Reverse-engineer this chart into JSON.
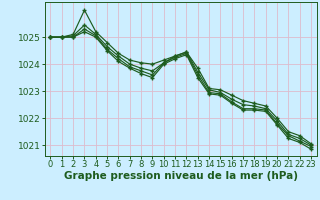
{
  "background_color": "#cceeff",
  "plot_bg_color": "#cceeff",
  "grid_color": "#aaddcc",
  "line_color": "#1e5c1e",
  "marker_color": "#1e5c1e",
  "xlabel": "Graphe pression niveau de la mer (hPa)",
  "xlabel_fontsize": 7.5,
  "ylabel_fontsize": 6.5,
  "tick_fontsize": 6,
  "ylim": [
    1020.6,
    1026.3
  ],
  "xlim": [
    -0.5,
    23.5
  ],
  "yticks": [
    1021,
    1022,
    1023,
    1024,
    1025
  ],
  "xticks": [
    0,
    1,
    2,
    3,
    4,
    5,
    6,
    7,
    8,
    9,
    10,
    11,
    12,
    13,
    14,
    15,
    16,
    17,
    18,
    19,
    20,
    21,
    22,
    23
  ],
  "series": [
    [
      1025.0,
      1025.0,
      1025.1,
      1026.0,
      1025.2,
      1024.8,
      1024.4,
      1024.15,
      1024.05,
      1024.0,
      1024.15,
      1024.3,
      1024.45,
      1023.85,
      1023.1,
      1023.05,
      1022.85,
      1022.65,
      1022.55,
      1022.45,
      1022.0,
      1021.5,
      1021.35,
      1021.05
    ],
    [
      1025.0,
      1025.0,
      1025.05,
      1025.45,
      1025.1,
      1024.65,
      1024.3,
      1024.0,
      1023.85,
      1023.75,
      1024.05,
      1024.3,
      1024.45,
      1023.7,
      1023.05,
      1022.95,
      1022.7,
      1022.5,
      1022.45,
      1022.35,
      1021.9,
      1021.4,
      1021.25,
      1021.0
    ],
    [
      1025.0,
      1025.0,
      1025.0,
      1025.3,
      1025.05,
      1024.55,
      1024.2,
      1023.9,
      1023.75,
      1023.6,
      1024.05,
      1024.25,
      1024.4,
      1023.6,
      1022.95,
      1022.9,
      1022.6,
      1022.35,
      1022.35,
      1022.3,
      1021.8,
      1021.35,
      1021.15,
      1020.95
    ],
    [
      1025.0,
      1025.0,
      1025.0,
      1025.2,
      1025.0,
      1024.5,
      1024.1,
      1023.85,
      1023.65,
      1023.5,
      1024.0,
      1024.2,
      1024.35,
      1023.5,
      1022.9,
      1022.85,
      1022.55,
      1022.3,
      1022.3,
      1022.25,
      1021.75,
      1021.25,
      1021.1,
      1020.85
    ]
  ]
}
